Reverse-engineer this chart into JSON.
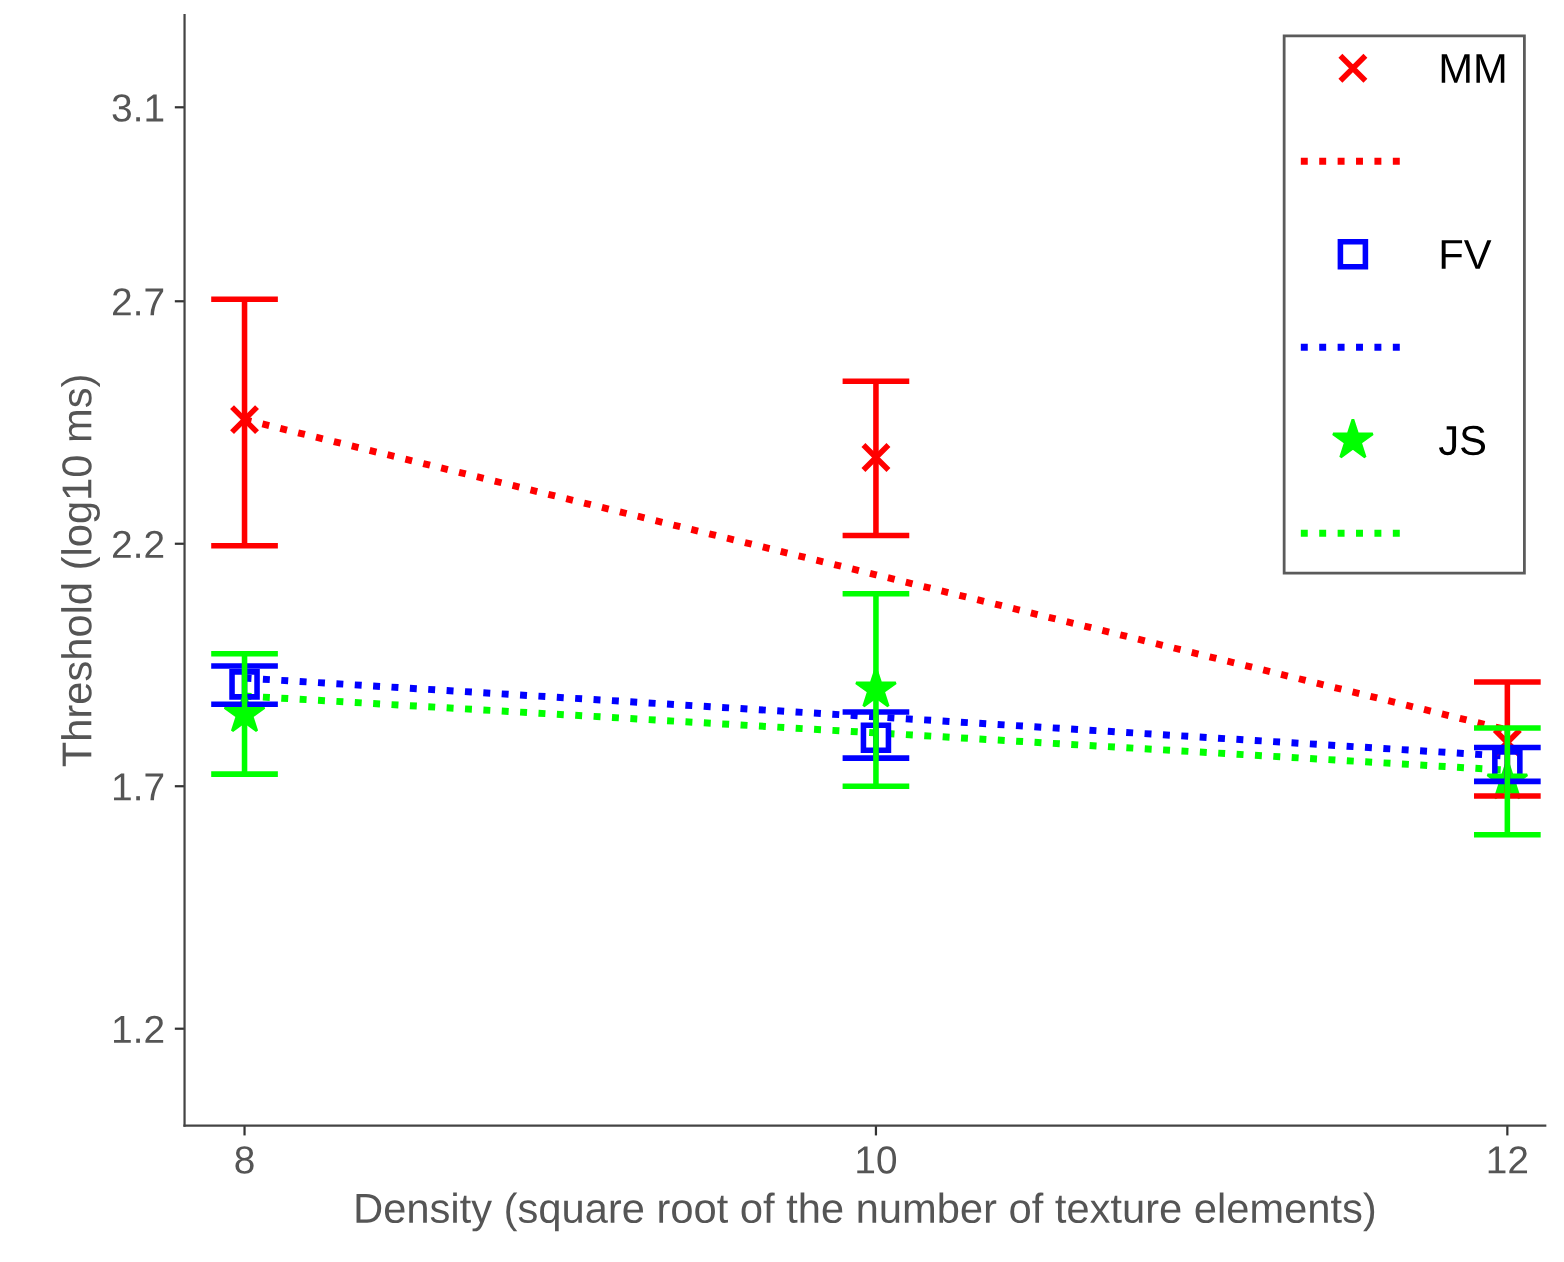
{
  "chart_data": {
    "type": "scatter",
    "xlabel": "Density (square root of the number of texture elements)",
    "ylabel": "Threshold (log10 ms)",
    "x": [
      8,
      10,
      12
    ],
    "xlim": [
      7.81,
      12.12
    ],
    "xticks": [
      8,
      10,
      12
    ],
    "ylim": [
      1.0,
      3.29
    ],
    "yticks": [
      1.2,
      1.7,
      2.2,
      2.7,
      3.1
    ],
    "grid": false,
    "legend": "top right",
    "series": [
      {
        "name": "MM",
        "color": "#ff0000",
        "marker": "cross",
        "values": [
          2.456,
          2.378,
          1.79
        ],
        "errors": [
          [
            2.196,
            2.704
          ],
          [
            2.217,
            2.535
          ],
          [
            1.68,
            1.915
          ]
        ]
      },
      {
        "type": "line",
        "color": "#ff0000",
        "line_style": "dotted",
        "marker": "none",
        "values": [
          2.456,
          2.136,
          1.816
        ]
      },
      {
        "name": "FV",
        "color": "#0000ff",
        "marker": "square",
        "values": [
          1.91,
          1.8,
          1.745
        ],
        "errors": [
          [
            1.869,
            1.948
          ],
          [
            1.758,
            1.853
          ],
          [
            1.71,
            1.78
          ]
        ]
      },
      {
        "type": "line",
        "color": "#0000ff",
        "line_style": "dotted",
        "marker": "none",
        "values": [
          1.923,
          1.843,
          1.762
        ]
      },
      {
        "name": "JS",
        "color": "#00ff00",
        "marker": "star",
        "values": [
          1.849,
          1.9,
          1.71
        ],
        "errors": [
          [
            1.725,
            1.973
          ],
          [
            1.7,
            2.097
          ],
          [
            1.6,
            1.82
          ]
        ]
      },
      {
        "type": "line",
        "color": "#00ff00",
        "line_style": "dotted",
        "marker": "none",
        "values": [
          1.886,
          1.81,
          1.733
        ]
      }
    ]
  }
}
